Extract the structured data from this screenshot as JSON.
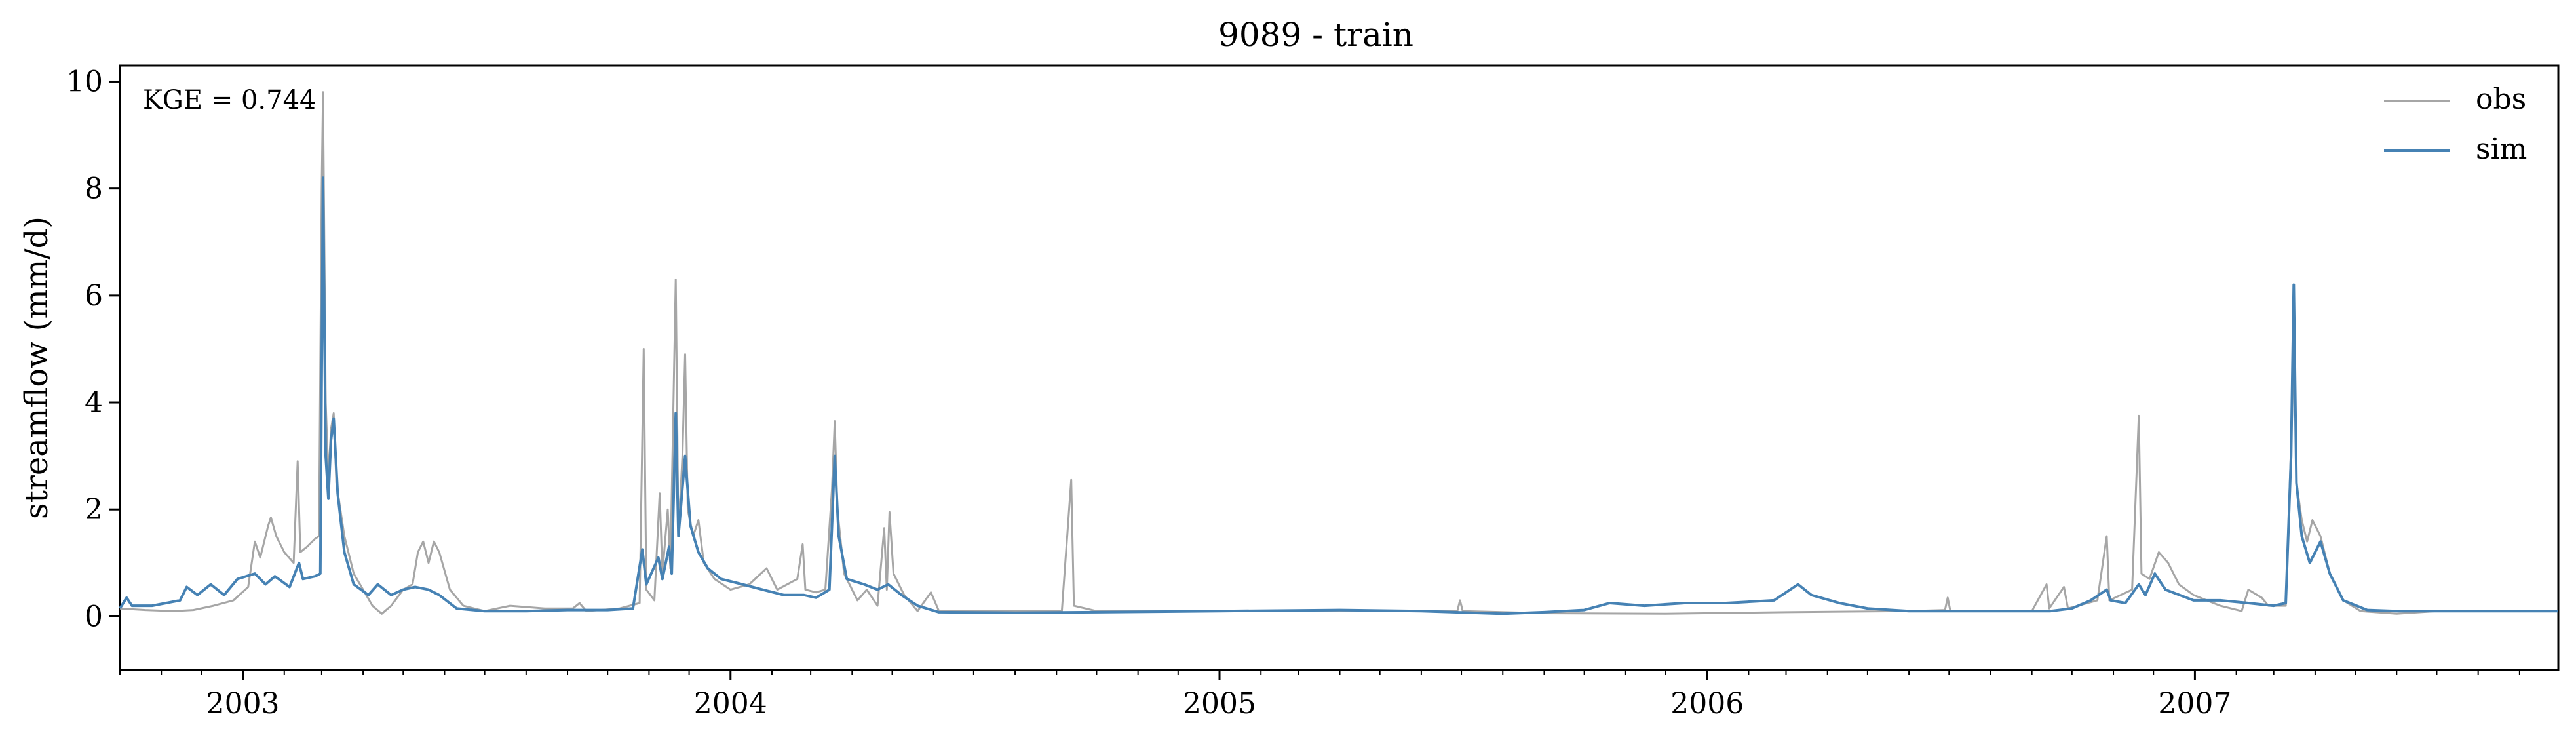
{
  "chart_data": {
    "type": "line",
    "title": "9089 - train",
    "ylabel": "streamflow (mm/d)",
    "xlabel": "",
    "annotation": "KGE = 0.744",
    "legend_position": "top-right",
    "grid": false,
    "xlim": [
      "2002-10-01",
      "2007-09-30"
    ],
    "ylim": [
      -1,
      10.3
    ],
    "yticks": [
      0,
      2,
      4,
      6,
      8,
      10
    ],
    "xticks": [
      {
        "label": "2003",
        "date": "2003-01-01"
      },
      {
        "label": "2004",
        "date": "2004-01-01"
      },
      {
        "label": "2005",
        "date": "2005-01-01"
      },
      {
        "label": "2006",
        "date": "2006-01-01"
      },
      {
        "label": "2007",
        "date": "2007-01-01"
      }
    ],
    "series": [
      {
        "name": "obs",
        "color": "#a6a6a6",
        "points": [
          [
            "2002-10-01",
            0.15
          ],
          [
            "2002-10-20",
            0.12
          ],
          [
            "2002-11-10",
            0.1
          ],
          [
            "2002-11-25",
            0.12
          ],
          [
            "2002-12-10",
            0.2
          ],
          [
            "2002-12-25",
            0.3
          ],
          [
            "2003-01-05",
            0.55
          ],
          [
            "2003-01-10",
            1.4
          ],
          [
            "2003-01-14",
            1.1
          ],
          [
            "2003-01-20",
            1.7
          ],
          [
            "2003-01-22",
            1.85
          ],
          [
            "2003-01-26",
            1.5
          ],
          [
            "2003-02-01",
            1.2
          ],
          [
            "2003-02-08",
            1.0
          ],
          [
            "2003-02-11",
            2.9
          ],
          [
            "2003-02-13",
            1.2
          ],
          [
            "2003-02-18",
            1.3
          ],
          [
            "2003-02-24",
            1.45
          ],
          [
            "2003-02-27",
            1.5
          ],
          [
            "2003-03-01",
            8.0
          ],
          [
            "2003-03-02",
            9.8
          ],
          [
            "2003-03-04",
            4.0
          ],
          [
            "2003-03-06",
            2.6
          ],
          [
            "2003-03-08",
            3.5
          ],
          [
            "2003-03-10",
            3.8
          ],
          [
            "2003-03-12",
            2.5
          ],
          [
            "2003-03-18",
            1.5
          ],
          [
            "2003-03-25",
            0.8
          ],
          [
            "2003-04-01",
            0.5
          ],
          [
            "2003-04-08",
            0.2
          ],
          [
            "2003-04-15",
            0.05
          ],
          [
            "2003-04-22",
            0.2
          ],
          [
            "2003-05-01",
            0.5
          ],
          [
            "2003-05-08",
            0.6
          ],
          [
            "2003-05-12",
            1.2
          ],
          [
            "2003-05-16",
            1.4
          ],
          [
            "2003-05-20",
            1.0
          ],
          [
            "2003-05-24",
            1.4
          ],
          [
            "2003-05-28",
            1.2
          ],
          [
            "2003-06-05",
            0.5
          ],
          [
            "2003-06-15",
            0.2
          ],
          [
            "2003-07-01",
            0.1
          ],
          [
            "2003-07-20",
            0.2
          ],
          [
            "2003-08-15",
            0.15
          ],
          [
            "2003-09-05",
            0.15
          ],
          [
            "2003-09-10",
            0.25
          ],
          [
            "2003-09-15",
            0.1
          ],
          [
            "2003-10-10",
            0.15
          ],
          [
            "2003-10-25",
            0.25
          ],
          [
            "2003-10-28",
            5.0
          ],
          [
            "2003-10-30",
            0.5
          ],
          [
            "2003-11-05",
            0.3
          ],
          [
            "2003-11-09",
            2.3
          ],
          [
            "2003-11-11",
            0.8
          ],
          [
            "2003-11-15",
            2.0
          ],
          [
            "2003-11-17",
            0.9
          ],
          [
            "2003-11-21",
            6.3
          ],
          [
            "2003-11-23",
            1.5
          ],
          [
            "2003-11-26",
            3.0
          ],
          [
            "2003-11-28",
            4.9
          ],
          [
            "2003-11-30",
            2.0
          ],
          [
            "2003-12-04",
            1.5
          ],
          [
            "2003-12-08",
            1.8
          ],
          [
            "2003-12-12",
            1.0
          ],
          [
            "2003-12-20",
            0.7
          ],
          [
            "2004-01-01",
            0.5
          ],
          [
            "2004-01-15",
            0.6
          ],
          [
            "2004-01-28",
            0.9
          ],
          [
            "2004-02-05",
            0.5
          ],
          [
            "2004-02-20",
            0.7
          ],
          [
            "2004-02-24",
            1.35
          ],
          [
            "2004-02-26",
            0.5
          ],
          [
            "2004-03-05",
            0.45
          ],
          [
            "2004-03-12",
            0.5
          ],
          [
            "2004-03-17",
            2.4
          ],
          [
            "2004-03-19",
            3.65
          ],
          [
            "2004-03-21",
            2.0
          ],
          [
            "2004-03-26",
            0.8
          ],
          [
            "2004-04-05",
            0.3
          ],
          [
            "2004-04-12",
            0.5
          ],
          [
            "2004-04-20",
            0.2
          ],
          [
            "2004-04-25",
            1.65
          ],
          [
            "2004-04-27",
            0.5
          ],
          [
            "2004-04-29",
            1.95
          ],
          [
            "2004-05-02",
            0.8
          ],
          [
            "2004-05-10",
            0.4
          ],
          [
            "2004-05-20",
            0.1
          ],
          [
            "2004-05-30",
            0.45
          ],
          [
            "2004-06-05",
            0.1
          ],
          [
            "2004-06-30",
            0.1
          ],
          [
            "2004-08-01",
            0.1
          ],
          [
            "2004-09-05",
            0.1
          ],
          [
            "2004-09-12",
            2.55
          ],
          [
            "2004-09-14",
            0.2
          ],
          [
            "2004-10-01",
            0.1
          ],
          [
            "2004-12-31",
            0.1
          ],
          [
            "2005-03-01",
            0.1
          ],
          [
            "2005-06-01",
            0.1
          ],
          [
            "2005-06-28",
            0.1
          ],
          [
            "2005-06-30",
            0.3
          ],
          [
            "2005-07-02",
            0.1
          ],
          [
            "2005-09-01",
            0.06
          ],
          [
            "2005-12-01",
            0.05
          ],
          [
            "2006-03-01",
            0.08
          ],
          [
            "2006-06-01",
            0.1
          ],
          [
            "2006-06-28",
            0.12
          ],
          [
            "2006-06-30",
            0.35
          ],
          [
            "2006-07-02",
            0.1
          ],
          [
            "2006-09-01",
            0.1
          ],
          [
            "2006-09-12",
            0.6
          ],
          [
            "2006-09-14",
            0.15
          ],
          [
            "2006-09-25",
            0.55
          ],
          [
            "2006-09-28",
            0.15
          ],
          [
            "2006-10-20",
            0.3
          ],
          [
            "2006-10-27",
            1.5
          ],
          [
            "2006-10-29",
            0.3
          ],
          [
            "2006-11-15",
            0.5
          ],
          [
            "2006-11-20",
            3.75
          ],
          [
            "2006-11-22",
            0.8
          ],
          [
            "2006-11-28",
            0.7
          ],
          [
            "2006-12-05",
            1.2
          ],
          [
            "2006-12-12",
            1.0
          ],
          [
            "2006-12-20",
            0.6
          ],
          [
            "2006-12-31",
            0.4
          ],
          [
            "2007-01-20",
            0.2
          ],
          [
            "2007-02-05",
            0.1
          ],
          [
            "2007-02-10",
            0.5
          ],
          [
            "2007-02-20",
            0.35
          ],
          [
            "2007-02-25",
            0.2
          ],
          [
            "2007-03-01",
            0.2
          ],
          [
            "2007-03-10",
            0.2
          ],
          [
            "2007-03-15",
            4.0
          ],
          [
            "2007-03-16",
            5.8
          ],
          [
            "2007-03-18",
            2.5
          ],
          [
            "2007-03-22",
            1.8
          ],
          [
            "2007-03-26",
            1.4
          ],
          [
            "2007-03-30",
            1.8
          ],
          [
            "2007-04-05",
            1.5
          ],
          [
            "2007-04-12",
            0.8
          ],
          [
            "2007-04-22",
            0.3
          ],
          [
            "2007-05-05",
            0.1
          ],
          [
            "2007-06-01",
            0.05
          ],
          [
            "2007-07-01",
            0.1
          ],
          [
            "2007-09-30",
            0.1
          ]
        ]
      },
      {
        "name": "sim",
        "color": "#4682b4",
        "points": [
          [
            "2002-10-01",
            0.15
          ],
          [
            "2002-10-06",
            0.35
          ],
          [
            "2002-10-10",
            0.2
          ],
          [
            "2002-10-25",
            0.2
          ],
          [
            "2002-11-15",
            0.3
          ],
          [
            "2002-11-20",
            0.55
          ],
          [
            "2002-11-28",
            0.4
          ],
          [
            "2002-12-08",
            0.6
          ],
          [
            "2002-12-18",
            0.4
          ],
          [
            "2002-12-28",
            0.7
          ],
          [
            "2003-01-10",
            0.8
          ],
          [
            "2003-01-18",
            0.6
          ],
          [
            "2003-01-25",
            0.75
          ],
          [
            "2003-02-05",
            0.55
          ],
          [
            "2003-02-12",
            1.0
          ],
          [
            "2003-02-15",
            0.7
          ],
          [
            "2003-02-24",
            0.75
          ],
          [
            "2003-02-28",
            0.8
          ],
          [
            "2003-03-02",
            8.2
          ],
          [
            "2003-03-04",
            3.0
          ],
          [
            "2003-03-06",
            2.2
          ],
          [
            "2003-03-08",
            3.3
          ],
          [
            "2003-03-10",
            3.7
          ],
          [
            "2003-03-13",
            2.3
          ],
          [
            "2003-03-18",
            1.2
          ],
          [
            "2003-03-25",
            0.6
          ],
          [
            "2003-04-05",
            0.4
          ],
          [
            "2003-04-12",
            0.6
          ],
          [
            "2003-04-22",
            0.4
          ],
          [
            "2003-05-01",
            0.5
          ],
          [
            "2003-05-10",
            0.55
          ],
          [
            "2003-05-20",
            0.5
          ],
          [
            "2003-05-28",
            0.4
          ],
          [
            "2003-06-10",
            0.15
          ],
          [
            "2003-07-01",
            0.1
          ],
          [
            "2003-08-01",
            0.1
          ],
          [
            "2003-09-01",
            0.12
          ],
          [
            "2003-10-01",
            0.12
          ],
          [
            "2003-10-20",
            0.15
          ],
          [
            "2003-10-27",
            1.25
          ],
          [
            "2003-10-30",
            0.6
          ],
          [
            "2003-11-08",
            1.1
          ],
          [
            "2003-11-11",
            0.7
          ],
          [
            "2003-11-16",
            1.3
          ],
          [
            "2003-11-18",
            0.8
          ],
          [
            "2003-11-21",
            3.8
          ],
          [
            "2003-11-23",
            1.5
          ],
          [
            "2003-11-28",
            3.0
          ],
          [
            "2003-12-02",
            1.7
          ],
          [
            "2003-12-08",
            1.2
          ],
          [
            "2003-12-15",
            0.9
          ],
          [
            "2003-12-25",
            0.7
          ],
          [
            "2004-01-10",
            0.6
          ],
          [
            "2004-01-25",
            0.5
          ],
          [
            "2004-02-10",
            0.4
          ],
          [
            "2004-02-25",
            0.4
          ],
          [
            "2004-03-05",
            0.35
          ],
          [
            "2004-03-15",
            0.5
          ],
          [
            "2004-03-19",
            3.0
          ],
          [
            "2004-03-22",
            1.5
          ],
          [
            "2004-03-28",
            0.7
          ],
          [
            "2004-04-10",
            0.6
          ],
          [
            "2004-04-20",
            0.5
          ],
          [
            "2004-04-28",
            0.6
          ],
          [
            "2004-05-08",
            0.4
          ],
          [
            "2004-05-20",
            0.2
          ],
          [
            "2004-06-05",
            0.08
          ],
          [
            "2004-08-01",
            0.07
          ],
          [
            "2004-10-01",
            0.08
          ],
          [
            "2005-01-01",
            0.1
          ],
          [
            "2005-04-01",
            0.12
          ],
          [
            "2005-06-01",
            0.1
          ],
          [
            "2005-08-01",
            0.05
          ],
          [
            "2005-09-01",
            0.08
          ],
          [
            "2005-10-01",
            0.12
          ],
          [
            "2005-10-20",
            0.25
          ],
          [
            "2005-11-15",
            0.2
          ],
          [
            "2005-12-15",
            0.25
          ],
          [
            "2006-01-15",
            0.25
          ],
          [
            "2006-02-20",
            0.3
          ],
          [
            "2006-03-10",
            0.6
          ],
          [
            "2006-03-20",
            0.4
          ],
          [
            "2006-04-10",
            0.25
          ],
          [
            "2006-05-01",
            0.15
          ],
          [
            "2006-06-01",
            0.1
          ],
          [
            "2006-08-01",
            0.1
          ],
          [
            "2006-09-15",
            0.1
          ],
          [
            "2006-10-01",
            0.15
          ],
          [
            "2006-10-15",
            0.3
          ],
          [
            "2006-10-27",
            0.5
          ],
          [
            "2006-10-30",
            0.3
          ],
          [
            "2006-11-10",
            0.25
          ],
          [
            "2006-11-20",
            0.6
          ],
          [
            "2006-11-25",
            0.4
          ],
          [
            "2006-12-02",
            0.8
          ],
          [
            "2006-12-10",
            0.5
          ],
          [
            "2006-12-31",
            0.3
          ],
          [
            "2007-01-20",
            0.3
          ],
          [
            "2007-02-10",
            0.25
          ],
          [
            "2007-03-01",
            0.2
          ],
          [
            "2007-03-10",
            0.25
          ],
          [
            "2007-03-14",
            3.0
          ],
          [
            "2007-03-16",
            6.2
          ],
          [
            "2007-03-18",
            2.5
          ],
          [
            "2007-03-22",
            1.5
          ],
          [
            "2007-03-28",
            1.0
          ],
          [
            "2007-04-05",
            1.4
          ],
          [
            "2007-04-12",
            0.8
          ],
          [
            "2007-04-22",
            0.3
          ],
          [
            "2007-05-10",
            0.12
          ],
          [
            "2007-06-01",
            0.1
          ],
          [
            "2007-09-30",
            0.1
          ]
        ]
      }
    ]
  }
}
